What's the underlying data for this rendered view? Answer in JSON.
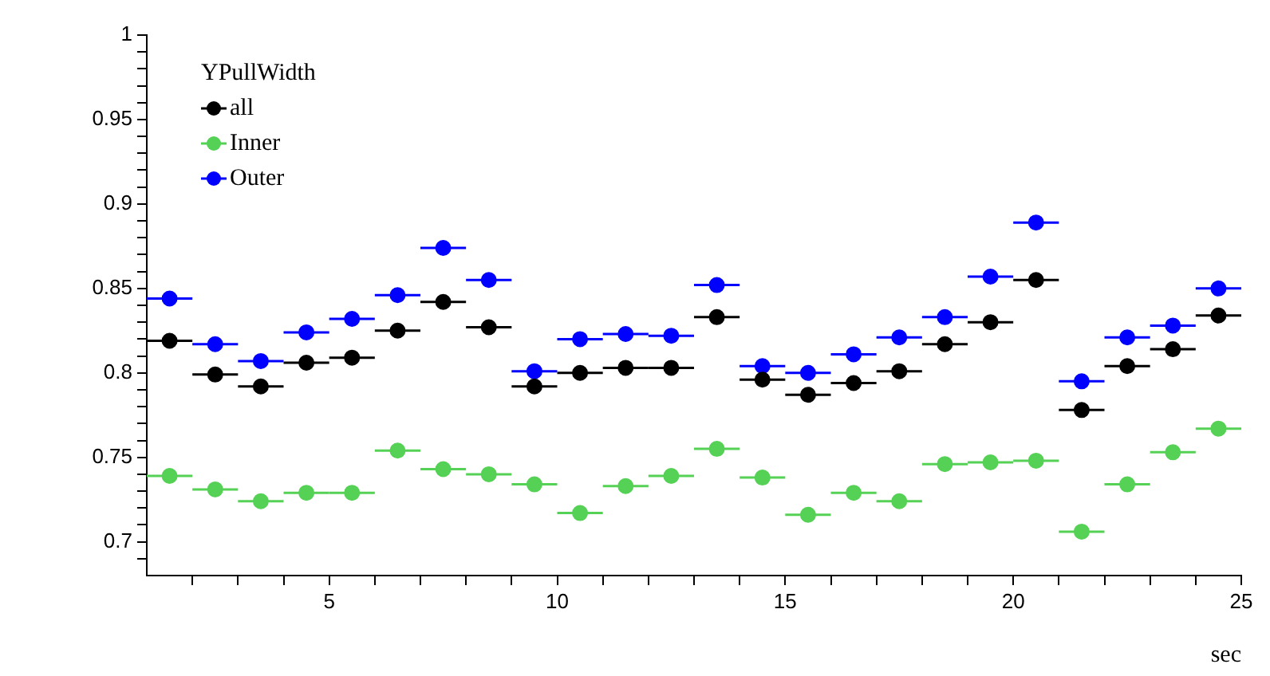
{
  "chart_data": {
    "type": "scatter",
    "xlabel": "sec",
    "legend_title": "YPullWidth",
    "legend": "top left",
    "marker": "circle",
    "grid": false,
    "x": [
      1.5,
      2.5,
      3.5,
      4.5,
      5.5,
      6.5,
      7.5,
      8.5,
      9.5,
      10.5,
      11.5,
      12.5,
      13.5,
      14.5,
      15.5,
      16.5,
      17.5,
      18.5,
      19.5,
      20.5,
      21.5,
      22.5,
      23.5,
      24.5
    ],
    "xlim": [
      1,
      25
    ],
    "xticks": [
      {
        "value": 2,
        "label": null
      },
      {
        "value": 3,
        "label": null
      },
      {
        "value": 4,
        "label": null
      },
      5,
      {
        "value": 6,
        "label": null
      },
      {
        "value": 7,
        "label": null
      },
      {
        "value": 8,
        "label": null
      },
      {
        "value": 9,
        "label": null
      },
      10,
      {
        "value": 11,
        "label": null
      },
      {
        "value": 12,
        "label": null
      },
      {
        "value": 13,
        "label": null
      },
      {
        "value": 14,
        "label": null
      },
      15,
      {
        "value": 16,
        "label": null
      },
      {
        "value": 17,
        "label": null
      },
      {
        "value": 18,
        "label": null
      },
      {
        "value": 19,
        "label": null
      },
      20,
      {
        "value": 21,
        "label": null
      },
      {
        "value": 22,
        "label": null
      },
      {
        "value": 23,
        "label": null
      },
      {
        "value": 24,
        "label": null
      },
      25
    ],
    "ylim": [
      0.68,
      1
    ],
    "yticks": [
      {
        "value": 0.69,
        "label": null
      },
      0.7,
      {
        "value": 0.71,
        "label": null
      },
      {
        "value": 0.72,
        "label": null
      },
      {
        "value": 0.73,
        "label": null
      },
      {
        "value": 0.74,
        "label": null
      },
      0.75,
      {
        "value": 0.76,
        "label": null
      },
      {
        "value": 0.77,
        "label": null
      },
      {
        "value": 0.78,
        "label": null
      },
      {
        "value": 0.79,
        "label": null
      },
      0.8,
      {
        "value": 0.81,
        "label": null
      },
      {
        "value": 0.82,
        "label": null
      },
      {
        "value": 0.83,
        "label": null
      },
      {
        "value": 0.84,
        "label": null
      },
      0.85,
      {
        "value": 0.86,
        "label": null
      },
      {
        "value": 0.87,
        "label": null
      },
      {
        "value": 0.88,
        "label": null
      },
      {
        "value": 0.89,
        "label": null
      },
      0.9,
      {
        "value": 0.91,
        "label": null
      },
      {
        "value": 0.92,
        "label": null
      },
      {
        "value": 0.93,
        "label": null
      },
      {
        "value": 0.94,
        "label": null
      },
      0.95,
      {
        "value": 0.96,
        "label": null
      },
      {
        "value": 0.97,
        "label": null
      },
      {
        "value": 0.98,
        "label": null
      },
      {
        "value": 0.99,
        "label": null
      },
      1
    ],
    "series": [
      {
        "name": "all",
        "color": "#000000",
        "values": [
          0.819,
          0.799,
          0.792,
          0.806,
          0.809,
          0.825,
          0.842,
          0.827,
          0.792,
          0.8,
          0.803,
          0.803,
          0.833,
          0.796,
          0.787,
          0.794,
          0.801,
          0.817,
          0.83,
          0.855,
          0.778,
          0.804,
          0.814,
          0.834
        ],
        "xerrors": [
          0.5,
          0.5,
          0.5,
          0.5,
          0.5,
          0.5,
          0.5,
          0.5,
          0.5,
          0.5,
          0.5,
          0.5,
          0.5,
          0.5,
          0.5,
          0.5,
          0.5,
          0.5,
          0.5,
          0.5,
          0.5,
          0.5,
          0.5,
          0.5
        ]
      },
      {
        "name": "Inner",
        "color": "#55d155",
        "values": [
          0.739,
          0.731,
          0.724,
          0.729,
          0.729,
          0.754,
          0.743,
          0.74,
          0.734,
          0.717,
          0.733,
          0.739,
          0.755,
          0.738,
          0.716,
          0.729,
          0.724,
          0.746,
          0.747,
          0.748,
          0.706,
          0.734,
          0.753,
          0.767
        ],
        "xerrors": [
          0.5,
          0.5,
          0.5,
          0.5,
          0.5,
          0.5,
          0.5,
          0.5,
          0.5,
          0.5,
          0.5,
          0.5,
          0.5,
          0.5,
          0.5,
          0.5,
          0.5,
          0.5,
          0.5,
          0.5,
          0.5,
          0.5,
          0.5,
          0.5
        ]
      },
      {
        "name": "Outer",
        "color": "#0000ff",
        "values": [
          0.844,
          0.817,
          0.807,
          0.824,
          0.832,
          0.846,
          0.874,
          0.855,
          0.801,
          0.82,
          0.823,
          0.822,
          0.852,
          0.804,
          0.8,
          0.811,
          0.821,
          0.833,
          0.857,
          0.889,
          0.795,
          0.821,
          0.828,
          0.85
        ],
        "xerrors": [
          0.5,
          0.5,
          0.5,
          0.5,
          0.5,
          0.5,
          0.5,
          0.5,
          0.5,
          0.5,
          0.5,
          0.5,
          0.5,
          0.5,
          0.5,
          0.5,
          0.5,
          0.5,
          0.5,
          0.5,
          0.5,
          0.5,
          0.5,
          0.5
        ]
      }
    ]
  }
}
